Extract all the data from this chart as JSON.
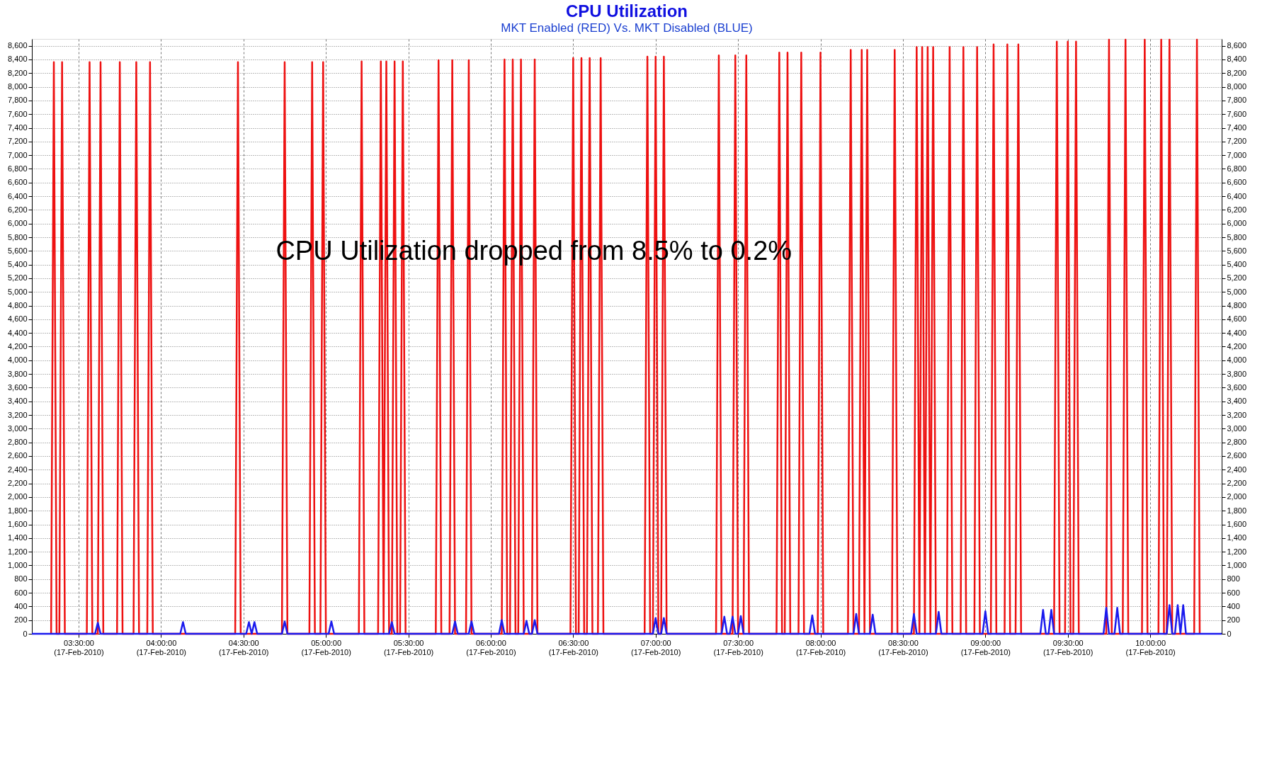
{
  "chart_data": {
    "type": "line",
    "title": "CPU Utilization",
    "subtitle": "MKT Enabled (RED) Vs. MKT Disabled (BLUE)",
    "annotations": [
      "CPU Utilization dropped from 8.5% to 0.2%"
    ],
    "xlim": [
      "2010-02-17T03:13",
      "2010-02-17T10:26"
    ],
    "ylim": [
      0,
      8700
    ],
    "y2lim": [
      0,
      8700
    ],
    "xticks": [
      {
        "value": "2010-02-17T03:30",
        "label": "03:30:00\n(17-Feb-2010)"
      },
      {
        "value": "2010-02-17T04:00",
        "label": "04:00:00\n(17-Feb-2010)"
      },
      {
        "value": "2010-02-17T04:30",
        "label": "04:30:00\n(17-Feb-2010)"
      },
      {
        "value": "2010-02-17T05:00",
        "label": "05:00:00\n(17-Feb-2010)"
      },
      {
        "value": "2010-02-17T05:30",
        "label": "05:30:00\n(17-Feb-2010)"
      },
      {
        "value": "2010-02-17T06:00",
        "label": "06:00:00\n(17-Feb-2010)"
      },
      {
        "value": "2010-02-17T06:30",
        "label": "06:30:00\n(17-Feb-2010)"
      },
      {
        "value": "2010-02-17T07:00",
        "label": "07:00:00\n(17-Feb-2010)"
      },
      {
        "value": "2010-02-17T07:30",
        "label": "07:30:00\n(17-Feb-2010)"
      },
      {
        "value": "2010-02-17T08:00",
        "label": "08:00:00\n(17-Feb-2010)"
      },
      {
        "value": "2010-02-17T08:30",
        "label": "08:30:00\n(17-Feb-2010)"
      },
      {
        "value": "2010-02-17T09:00",
        "label": "09:00:00\n(17-Feb-2010)"
      },
      {
        "value": "2010-02-17T09:30",
        "label": "09:30:00\n(17-Feb-2010)"
      },
      {
        "value": "2010-02-17T10:00",
        "label": "10:00:00\n(17-Feb-2010)"
      }
    ],
    "yticks": [
      0,
      200,
      400,
      600,
      800,
      {
        "value": 1000,
        "label": "1,000"
      },
      {
        "value": 1200,
        "label": "1,200"
      },
      {
        "value": 1400,
        "label": "1,400"
      },
      {
        "value": 1600,
        "label": "1,600"
      },
      {
        "value": 1800,
        "label": "1,800"
      },
      {
        "value": 2000,
        "label": "2,000"
      },
      {
        "value": 2200,
        "label": "2,200"
      },
      {
        "value": 2400,
        "label": "2,400"
      },
      {
        "value": 2600,
        "label": "2,600"
      },
      {
        "value": 2800,
        "label": "2,800"
      },
      {
        "value": 3000,
        "label": "3,000"
      },
      {
        "value": 3200,
        "label": "3,200"
      },
      {
        "value": 3400,
        "label": "3,400"
      },
      {
        "value": 3600,
        "label": "3,600"
      },
      {
        "value": 3800,
        "label": "3,800"
      },
      {
        "value": 4000,
        "label": "4,000"
      },
      {
        "value": 4200,
        "label": "4,200"
      },
      {
        "value": 4400,
        "label": "4,400"
      },
      {
        "value": 4600,
        "label": "4,600"
      },
      {
        "value": 4800,
        "label": "4,800"
      },
      {
        "value": 5000,
        "label": "5,000"
      },
      {
        "value": 5200,
        "label": "5,200"
      },
      {
        "value": 5400,
        "label": "5,400"
      },
      {
        "value": 5600,
        "label": "5,600"
      },
      {
        "value": 5800,
        "label": "5,800"
      },
      {
        "value": 6000,
        "label": "6,000"
      },
      {
        "value": 6200,
        "label": "6,200"
      },
      {
        "value": 6400,
        "label": "6,400"
      },
      {
        "value": 6600,
        "label": "6,600"
      },
      {
        "value": 6800,
        "label": "6,800"
      },
      {
        "value": 7000,
        "label": "7,000"
      },
      {
        "value": 7200,
        "label": "7,200"
      },
      {
        "value": 7400,
        "label": "7,400"
      },
      {
        "value": 7600,
        "label": "7,600"
      },
      {
        "value": 7800,
        "label": "7,800"
      },
      {
        "value": 8000,
        "label": "8,000"
      },
      {
        "value": 8200,
        "label": "8,200"
      },
      {
        "value": 8400,
        "label": "8,400"
      },
      {
        "value": 8600,
        "label": "8,600"
      }
    ],
    "y2ticks": [
      0,
      200,
      400,
      600,
      800,
      {
        "value": 1000,
        "label": "1,000"
      },
      {
        "value": 1200,
        "label": "1,200"
      },
      {
        "value": 1400,
        "label": "1,400"
      },
      {
        "value": 1600,
        "label": "1,600"
      },
      {
        "value": 1800,
        "label": "1,800"
      },
      {
        "value": 2000,
        "label": "2,000"
      },
      {
        "value": 2200,
        "label": "2,200"
      },
      {
        "value": 2400,
        "label": "2,400"
      },
      {
        "value": 2600,
        "label": "2,600"
      },
      {
        "value": 2800,
        "label": "2,800"
      },
      {
        "value": 3000,
        "label": "3,000"
      },
      {
        "value": 3200,
        "label": "3,200"
      },
      {
        "value": 3400,
        "label": "3,400"
      },
      {
        "value": 3600,
        "label": "3,600"
      },
      {
        "value": 3800,
        "label": "3,800"
      },
      {
        "value": 4000,
        "label": "4,000"
      },
      {
        "value": 4200,
        "label": "4,200"
      },
      {
        "value": 4400,
        "label": "4,400"
      },
      {
        "value": 4600,
        "label": "4,600"
      },
      {
        "value": 4800,
        "label": "4,800"
      },
      {
        "value": 5000,
        "label": "5,000"
      },
      {
        "value": 5200,
        "label": "5,200"
      },
      {
        "value": 5400,
        "label": "5,400"
      },
      {
        "value": 5600,
        "label": "5,600"
      },
      {
        "value": 5800,
        "label": "5,800"
      },
      {
        "value": 6000,
        "label": "6,000"
      },
      {
        "value": 6200,
        "label": "6,200"
      },
      {
        "value": 6400,
        "label": "6,400"
      },
      {
        "value": 6600,
        "label": "6,600"
      },
      {
        "value": 6800,
        "label": "6,800"
      },
      {
        "value": 7000,
        "label": "7,000"
      },
      {
        "value": 7200,
        "label": "7,200"
      },
      {
        "value": 7400,
        "label": "7,400"
      },
      {
        "value": 7600,
        "label": "7,600"
      },
      {
        "value": 7800,
        "label": "7,800"
      },
      {
        "value": 8000,
        "label": "8,000"
      },
      {
        "value": 8200,
        "label": "8,200"
      },
      {
        "value": 8400,
        "label": "8,400"
      },
      {
        "value": 8600,
        "label": "8,600"
      }
    ],
    "grid": true,
    "legend": false,
    "marker": "none",
    "line_style": "solid",
    "series": [
      {
        "color": "#ee1111",
        "x": [
          "2010-02-17T03:20",
          "2010-02-17T03:21",
          "2010-02-17T03:22",
          "2010-02-17T03:23",
          "2010-02-17T03:24",
          "2010-02-17T03:25",
          "2010-02-17T03:33",
          "2010-02-17T03:34",
          "2010-02-17T03:35",
          "2010-02-17T03:37",
          "2010-02-17T03:38",
          "2010-02-17T03:39",
          "2010-02-17T03:44",
          "2010-02-17T03:45",
          "2010-02-17T03:46",
          "2010-02-17T03:50",
          "2010-02-17T03:51",
          "2010-02-17T03:52",
          "2010-02-17T03:55",
          "2010-02-17T03:56",
          "2010-02-17T03:57",
          "2010-02-17T04:27",
          "2010-02-17T04:28",
          "2010-02-17T04:29",
          "2010-02-17T04:44",
          "2010-02-17T04:45",
          "2010-02-17T04:46",
          "2010-02-17T04:54",
          "2010-02-17T04:55",
          "2010-02-17T04:56",
          "2010-02-17T04:58",
          "2010-02-17T04:59",
          "2010-02-17T05:00",
          "2010-02-17T05:12",
          "2010-02-17T05:13",
          "2010-02-17T05:14",
          "2010-02-17T05:19",
          "2010-02-17T05:20",
          "2010-02-17T05:21",
          "2010-02-17T05:21",
          "2010-02-17T05:22",
          "2010-02-17T05:23",
          "2010-02-17T05:24",
          "2010-02-17T05:25",
          "2010-02-17T05:26",
          "2010-02-17T05:27",
          "2010-02-17T05:28",
          "2010-02-17T05:29",
          "2010-02-17T05:40",
          "2010-02-17T05:41",
          "2010-02-17T05:42",
          "2010-02-17T05:45",
          "2010-02-17T05:46",
          "2010-02-17T05:47",
          "2010-02-17T05:51",
          "2010-02-17T05:52",
          "2010-02-17T05:53",
          "2010-02-17T06:04",
          "2010-02-17T06:05",
          "2010-02-17T06:06",
          "2010-02-17T06:07",
          "2010-02-17T06:08",
          "2010-02-17T06:09",
          "2010-02-17T06:10",
          "2010-02-17T06:11",
          "2010-02-17T06:12",
          "2010-02-17T06:15",
          "2010-02-17T06:16",
          "2010-02-17T06:17",
          "2010-02-17T06:29",
          "2010-02-17T06:30",
          "2010-02-17T06:31",
          "2010-02-17T06:32",
          "2010-02-17T06:33",
          "2010-02-17T06:34",
          "2010-02-17T06:35",
          "2010-02-17T06:36",
          "2010-02-17T06:37",
          "2010-02-17T06:39",
          "2010-02-17T06:40",
          "2010-02-17T06:41",
          "2010-02-17T06:56",
          "2010-02-17T06:57",
          "2010-02-17T06:58",
          "2010-02-17T06:59",
          "2010-02-17T07:00",
          "2010-02-17T07:01",
          "2010-02-17T07:02",
          "2010-02-17T07:03",
          "2010-02-17T07:04",
          "2010-02-17T07:22",
          "2010-02-17T07:23",
          "2010-02-17T07:24",
          "2010-02-17T07:28",
          "2010-02-17T07:29",
          "2010-02-17T07:30",
          "2010-02-17T07:32",
          "2010-02-17T07:33",
          "2010-02-17T07:34",
          "2010-02-17T07:44",
          "2010-02-17T07:45",
          "2010-02-17T07:46",
          "2010-02-17T07:47",
          "2010-02-17T07:48",
          "2010-02-17T07:49",
          "2010-02-17T07:52",
          "2010-02-17T07:53",
          "2010-02-17T07:54",
          "2010-02-17T07:59",
          "2010-02-17T08:00",
          "2010-02-17T08:01",
          "2010-02-17T08:10",
          "2010-02-17T08:11",
          "2010-02-17T08:12",
          "2010-02-17T08:14",
          "2010-02-17T08:15",
          "2010-02-17T08:16",
          "2010-02-17T08:16",
          "2010-02-17T08:17",
          "2010-02-17T08:18",
          "2010-02-17T08:26",
          "2010-02-17T08:27",
          "2010-02-17T08:28",
          "2010-02-17T08:34",
          "2010-02-17T08:35",
          "2010-02-17T08:36",
          "2010-02-17T08:36",
          "2010-02-17T08:37",
          "2010-02-17T08:38",
          "2010-02-17T08:38",
          "2010-02-17T08:39",
          "2010-02-17T08:40",
          "2010-02-17T08:40",
          "2010-02-17T08:41",
          "2010-02-17T08:42",
          "2010-02-17T08:46",
          "2010-02-17T08:47",
          "2010-02-17T08:48",
          "2010-02-17T08:51",
          "2010-02-17T08:52",
          "2010-02-17T08:53",
          "2010-02-17T08:56",
          "2010-02-17T08:57",
          "2010-02-17T08:58",
          "2010-02-17T09:02",
          "2010-02-17T09:03",
          "2010-02-17T09:04",
          "2010-02-17T09:07",
          "2010-02-17T09:08",
          "2010-02-17T09:09",
          "2010-02-17T09:11",
          "2010-02-17T09:12",
          "2010-02-17T09:13",
          "2010-02-17T09:25",
          "2010-02-17T09:26",
          "2010-02-17T09:27",
          "2010-02-17T09:29",
          "2010-02-17T09:30",
          "2010-02-17T09:31",
          "2010-02-17T09:32",
          "2010-02-17T09:33",
          "2010-02-17T09:34",
          "2010-02-17T09:44",
          "2010-02-17T09:45",
          "2010-02-17T09:46",
          "2010-02-17T09:50",
          "2010-02-17T09:51",
          "2010-02-17T09:52",
          "2010-02-17T09:57",
          "2010-02-17T09:58",
          "2010-02-17T09:59",
          "2010-02-17T10:03",
          "2010-02-17T10:04",
          "2010-02-17T10:05",
          "2010-02-17T10:06",
          "2010-02-17T10:07",
          "2010-02-17T10:08",
          "2010-02-17T10:16",
          "2010-02-17T10:17",
          "2010-02-17T10:18"
        ],
        "values": [
          0,
          8360,
          0,
          0,
          8360,
          0,
          0,
          8360,
          0,
          0,
          8360,
          0,
          0,
          8360,
          0,
          0,
          8360,
          0,
          0,
          8360,
          0,
          0,
          8360,
          0,
          0,
          8360,
          0,
          0,
          8360,
          0,
          0,
          8360,
          0,
          0,
          8370,
          0,
          0,
          8370,
          0,
          0,
          8370,
          0,
          0,
          8370,
          0,
          0,
          8370,
          0,
          0,
          8390,
          0,
          0,
          8390,
          0,
          0,
          8390,
          0,
          0,
          8400,
          0,
          0,
          8400,
          0,
          0,
          8400,
          0,
          0,
          8400,
          0,
          0,
          8420,
          0,
          0,
          8420,
          0,
          0,
          8420,
          0,
          0,
          8420,
          0,
          0,
          8440,
          0,
          0,
          8440,
          0,
          0,
          8440,
          0,
          0,
          8460,
          0,
          0,
          8460,
          0,
          0,
          8460,
          0,
          0,
          8500,
          0,
          0,
          8500,
          0,
          0,
          8500,
          0,
          0,
          8500,
          0,
          0,
          8540,
          0,
          0,
          8540,
          0,
          0,
          8540,
          0,
          0,
          8540,
          0,
          0,
          8580,
          0,
          0,
          8580,
          0,
          0,
          8580,
          0,
          0,
          8580,
          0,
          0,
          8580,
          0,
          0,
          8580,
          0,
          0,
          8580,
          0,
          0,
          8620,
          0,
          0,
          8620,
          0,
          0,
          8620,
          0,
          0,
          8660,
          0,
          0,
          8660,
          0,
          0,
          8660,
          0,
          0,
          8690,
          0,
          0,
          8690,
          0,
          0,
          8690,
          0,
          0,
          8690,
          0,
          0,
          8690,
          0,
          0,
          8690,
          0
        ]
      },
      {
        "color": "#1a1aee",
        "x": [
          "2010-02-17T03:13",
          "2010-02-17T03:36",
          "2010-02-17T03:37",
          "2010-02-17T03:38",
          "2010-02-17T04:07",
          "2010-02-17T04:08",
          "2010-02-17T04:09",
          "2010-02-17T04:31",
          "2010-02-17T04:32",
          "2010-02-17T04:33",
          "2010-02-17T04:33",
          "2010-02-17T04:34",
          "2010-02-17T04:35",
          "2010-02-17T04:44",
          "2010-02-17T04:45",
          "2010-02-17T04:46",
          "2010-02-17T05:01",
          "2010-02-17T05:02",
          "2010-02-17T05:03",
          "2010-02-17T05:23",
          "2010-02-17T05:24",
          "2010-02-17T05:25",
          "2010-02-17T05:46",
          "2010-02-17T05:47",
          "2010-02-17T05:48",
          "2010-02-17T05:52",
          "2010-02-17T05:53",
          "2010-02-17T05:54",
          "2010-02-17T06:03",
          "2010-02-17T06:04",
          "2010-02-17T06:05",
          "2010-02-17T06:12",
          "2010-02-17T06:13",
          "2010-02-17T06:14",
          "2010-02-17T06:15",
          "2010-02-17T06:16",
          "2010-02-17T06:17",
          "2010-02-17T06:59",
          "2010-02-17T07:00",
          "2010-02-17T07:01",
          "2010-02-17T07:02",
          "2010-02-17T07:03",
          "2010-02-17T07:04",
          "2010-02-17T07:24",
          "2010-02-17T07:25",
          "2010-02-17T07:26",
          "2010-02-17T07:27",
          "2010-02-17T07:28",
          "2010-02-17T07:29",
          "2010-02-17T07:30",
          "2010-02-17T07:31",
          "2010-02-17T07:32",
          "2010-02-17T07:56",
          "2010-02-17T07:57",
          "2010-02-17T07:58",
          "2010-02-17T08:12",
          "2010-02-17T08:13",
          "2010-02-17T08:14",
          "2010-02-17T08:18",
          "2010-02-17T08:19",
          "2010-02-17T08:20",
          "2010-02-17T08:33",
          "2010-02-17T08:34",
          "2010-02-17T08:35",
          "2010-02-17T08:42",
          "2010-02-17T08:43",
          "2010-02-17T08:44",
          "2010-02-17T08:59",
          "2010-02-17T09:00",
          "2010-02-17T09:01",
          "2010-02-17T09:20",
          "2010-02-17T09:21",
          "2010-02-17T09:22",
          "2010-02-17T09:23",
          "2010-02-17T09:24",
          "2010-02-17T09:25",
          "2010-02-17T09:43",
          "2010-02-17T09:44",
          "2010-02-17T09:45",
          "2010-02-17T09:47",
          "2010-02-17T09:48",
          "2010-02-17T09:49",
          "2010-02-17T10:06",
          "2010-02-17T10:07",
          "2010-02-17T10:08",
          "2010-02-17T10:09",
          "2010-02-17T10:10",
          "2010-02-17T10:11",
          "2010-02-17T10:11",
          "2010-02-17T10:12",
          "2010-02-17T10:13",
          "2010-02-17T10:26"
        ],
        "values": [
          0,
          0,
          160,
          0,
          0,
          170,
          0,
          0,
          170,
          0,
          0,
          170,
          0,
          0,
          180,
          0,
          0,
          180,
          0,
          0,
          170,
          0,
          0,
          180,
          0,
          0,
          180,
          0,
          0,
          200,
          0,
          0,
          190,
          0,
          0,
          200,
          0,
          0,
          230,
          0,
          0,
          230,
          0,
          0,
          250,
          0,
          0,
          250,
          0,
          0,
          260,
          0,
          0,
          270,
          0,
          0,
          290,
          0,
          0,
          280,
          0,
          0,
          290,
          0,
          0,
          320,
          0,
          0,
          330,
          0,
          0,
          350,
          0,
          0,
          350,
          0,
          0,
          380,
          0,
          0,
          380,
          0,
          0,
          420,
          0,
          0,
          420,
          0,
          0,
          420,
          0,
          0
        ]
      }
    ]
  }
}
